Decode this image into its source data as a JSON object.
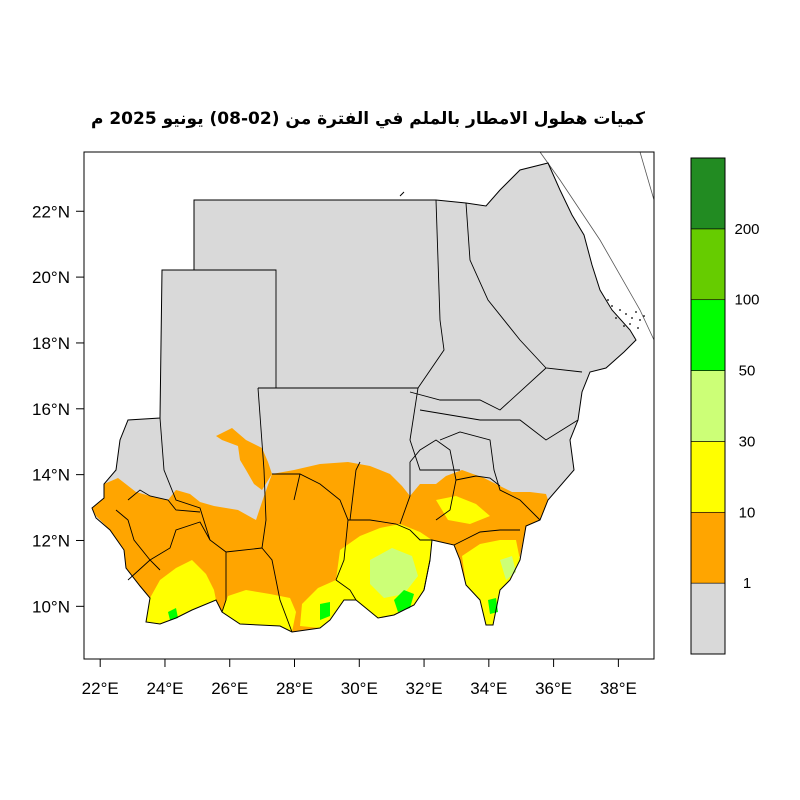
{
  "title": "كميات هطول الامطار بالملم في الفترة من (02-08) يونيو 2025 م",
  "map": {
    "lon_range": [
      21.5,
      39.1
    ],
    "lat_range": [
      8.4,
      23.8
    ],
    "x_ticks": [
      "22°E",
      "24°E",
      "26°E",
      "28°E",
      "30°E",
      "32°E",
      "34°E",
      "36°E",
      "38°E"
    ],
    "y_ticks": [
      "10°N",
      "12°N",
      "14°N",
      "16°N",
      "18°N",
      "20°N",
      "22°N"
    ],
    "land_color": "#d9d9d9",
    "border_color": "#000000"
  },
  "legend": {
    "bins": [
      {
        "color": "#d9d9d9"
      },
      {
        "color": "#ffa500"
      },
      {
        "color": "#ffff00"
      },
      {
        "color": "#ccff77"
      },
      {
        "color": "#00ff00"
      },
      {
        "color": "#66cc00"
      },
      {
        "color": "#228b22"
      }
    ],
    "labels": [
      "1",
      "10",
      "30",
      "50",
      "100",
      "200"
    ]
  }
}
